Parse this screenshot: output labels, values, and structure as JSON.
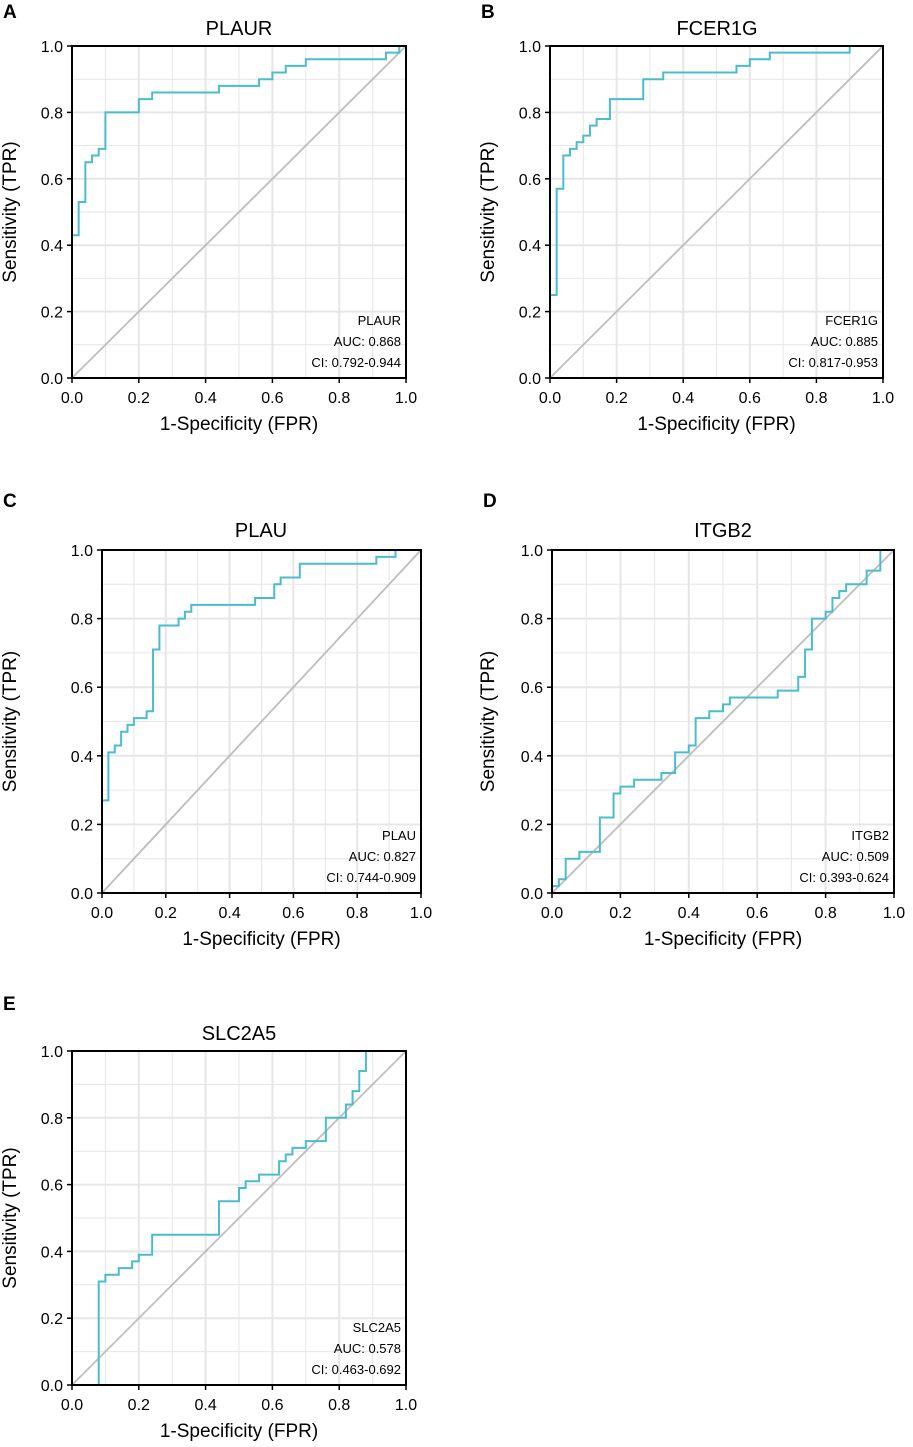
{
  "figure": {
    "panel_letters": [
      "A",
      "B",
      "C",
      "D",
      "E"
    ]
  },
  "colors": {
    "roc": "#4bbcce",
    "diagonal": "#bdbdbd",
    "grid": "#e6e6e6",
    "axis": "#000000"
  },
  "chart_data": [
    {
      "type": "line",
      "letter": "A",
      "title": "PLAUR",
      "xlabel": "1-Specificity (FPR)",
      "ylabel": "Sensitivity (TPR)",
      "xlim": [
        0,
        1
      ],
      "ylim": [
        0,
        1
      ],
      "xticks": [
        "0.0",
        "0.2",
        "0.4",
        "0.6",
        "0.8",
        "1.0"
      ],
      "yticks": [
        "0.0",
        "0.2",
        "0.4",
        "0.6",
        "0.8",
        "1.0"
      ],
      "grid": true,
      "annotation": {
        "name": "PLAUR",
        "auc": "AUC: 0.868",
        "ci": "CI: 0.792-0.944"
      },
      "series": [
        {
          "name": "ROC",
          "x": [
            0,
            0,
            0.02,
            0.02,
            0.04,
            0.04,
            0.06,
            0.06,
            0.08,
            0.08,
            0.1,
            0.1,
            0.2,
            0.2,
            0.24,
            0.24,
            0.44,
            0.44,
            0.56,
            0.56,
            0.6,
            0.6,
            0.64,
            0.64,
            0.7,
            0.7,
            0.94,
            0.94,
            0.98,
            0.98,
            1.0
          ],
          "y": [
            0,
            0.43,
            0.43,
            0.53,
            0.53,
            0.65,
            0.65,
            0.67,
            0.67,
            0.69,
            0.69,
            0.8,
            0.8,
            0.84,
            0.84,
            0.86,
            0.86,
            0.88,
            0.88,
            0.9,
            0.9,
            0.92,
            0.92,
            0.94,
            0.94,
            0.96,
            0.96,
            0.98,
            0.98,
            1.0,
            1.0
          ]
        },
        {
          "name": "Reference",
          "x": [
            0,
            1
          ],
          "y": [
            0,
            1
          ]
        }
      ]
    },
    {
      "type": "line",
      "letter": "B",
      "title": "FCER1G",
      "xlabel": "1-Specificity (FPR)",
      "ylabel": "Sensitivity (TPR)",
      "xlim": [
        0,
        1
      ],
      "ylim": [
        0,
        1
      ],
      "xticks": [
        "0.0",
        "0.2",
        "0.4",
        "0.6",
        "0.8",
        "1.0"
      ],
      "yticks": [
        "0.0",
        "0.2",
        "0.4",
        "0.6",
        "0.8",
        "1.0"
      ],
      "grid": true,
      "annotation": {
        "name": "FCER1G",
        "auc": "AUC: 0.885",
        "ci": "CI: 0.817-0.953"
      },
      "series": [
        {
          "name": "ROC",
          "x": [
            0,
            0,
            0.02,
            0.02,
            0.04,
            0.04,
            0.06,
            0.06,
            0.08,
            0.08,
            0.1,
            0.1,
            0.12,
            0.12,
            0.14,
            0.14,
            0.18,
            0.18,
            0.28,
            0.28,
            0.34,
            0.34,
            0.56,
            0.56,
            0.6,
            0.6,
            0.66,
            0.66,
            0.74,
            0.74,
            0.9,
            0.9,
            1.0
          ],
          "y": [
            0,
            0.25,
            0.25,
            0.57,
            0.57,
            0.67,
            0.67,
            0.69,
            0.69,
            0.71,
            0.71,
            0.73,
            0.73,
            0.76,
            0.76,
            0.78,
            0.78,
            0.84,
            0.84,
            0.9,
            0.9,
            0.92,
            0.92,
            0.94,
            0.94,
            0.96,
            0.96,
            0.98,
            0.98,
            0.98,
            0.98,
            1.0,
            1.0
          ]
        },
        {
          "name": "Reference",
          "x": [
            0,
            1
          ],
          "y": [
            0,
            1
          ]
        }
      ]
    },
    {
      "type": "line",
      "letter": "C",
      "title": "PLAU",
      "xlabel": "1-Specificity (FPR)",
      "ylabel": "Sensitivity (TPR)",
      "xlim": [
        0,
        1
      ],
      "ylim": [
        0,
        1
      ],
      "xticks": [
        "0.0",
        "0.2",
        "0.4",
        "0.6",
        "0.8",
        "1.0"
      ],
      "yticks": [
        "0.0",
        "0.2",
        "0.4",
        "0.6",
        "0.8",
        "1.0"
      ],
      "grid": true,
      "annotation": {
        "name": "PLAU",
        "auc": "AUC: 0.827",
        "ci": "CI: 0.744-0.909"
      },
      "series": [
        {
          "name": "ROC",
          "x": [
            0,
            0,
            0.02,
            0.02,
            0.04,
            0.04,
            0.06,
            0.06,
            0.08,
            0.08,
            0.1,
            0.1,
            0.12,
            0.12,
            0.14,
            0.14,
            0.16,
            0.16,
            0.18,
            0.18,
            0.24,
            0.24,
            0.26,
            0.26,
            0.28,
            0.28,
            0.48,
            0.48,
            0.54,
            0.54,
            0.56,
            0.56,
            0.62,
            0.62,
            0.86,
            0.86,
            0.92,
            0.92,
            1.0
          ],
          "y": [
            0,
            0.27,
            0.27,
            0.41,
            0.41,
            0.43,
            0.43,
            0.47,
            0.47,
            0.49,
            0.49,
            0.51,
            0.51,
            0.51,
            0.51,
            0.53,
            0.53,
            0.71,
            0.71,
            0.78,
            0.78,
            0.8,
            0.8,
            0.82,
            0.82,
            0.84,
            0.84,
            0.86,
            0.86,
            0.9,
            0.9,
            0.92,
            0.92,
            0.96,
            0.96,
            0.98,
            0.98,
            1.0,
            1.0
          ]
        },
        {
          "name": "Reference",
          "x": [
            0,
            1
          ],
          "y": [
            0,
            1
          ]
        }
      ]
    },
    {
      "type": "line",
      "letter": "D",
      "title": "ITGB2",
      "xlabel": "1-Specificity (FPR)",
      "ylabel": "Sensitivity (TPR)",
      "xlim": [
        0,
        1
      ],
      "ylim": [
        0,
        1
      ],
      "xticks": [
        "0.0",
        "0.2",
        "0.4",
        "0.6",
        "0.8",
        "1.0"
      ],
      "yticks": [
        "0.0",
        "0.2",
        "0.4",
        "0.6",
        "0.8",
        "1.0"
      ],
      "grid": true,
      "annotation": {
        "name": "ITGB2",
        "auc": "AUC: 0.509",
        "ci": "CI: 0.393-0.624"
      },
      "series": [
        {
          "name": "ROC",
          "x": [
            0,
            0,
            0.02,
            0.02,
            0.04,
            0.04,
            0.08,
            0.08,
            0.14,
            0.14,
            0.18,
            0.18,
            0.2,
            0.2,
            0.24,
            0.24,
            0.32,
            0.32,
            0.36,
            0.36,
            0.4,
            0.4,
            0.42,
            0.42,
            0.46,
            0.46,
            0.5,
            0.5,
            0.52,
            0.52,
            0.56,
            0.56,
            0.66,
            0.66,
            0.72,
            0.72,
            0.74,
            0.74,
            0.76,
            0.76,
            0.8,
            0.8,
            0.82,
            0.82,
            0.84,
            0.84,
            0.86,
            0.86,
            0.92,
            0.92,
            0.96,
            0.96,
            1.0
          ],
          "y": [
            0,
            0.02,
            0.02,
            0.04,
            0.04,
            0.1,
            0.1,
            0.12,
            0.12,
            0.22,
            0.22,
            0.29,
            0.29,
            0.31,
            0.31,
            0.33,
            0.33,
            0.35,
            0.35,
            0.41,
            0.41,
            0.43,
            0.43,
            0.51,
            0.51,
            0.53,
            0.53,
            0.55,
            0.55,
            0.57,
            0.57,
            0.57,
            0.57,
            0.59,
            0.59,
            0.63,
            0.63,
            0.71,
            0.71,
            0.8,
            0.8,
            0.82,
            0.82,
            0.86,
            0.86,
            0.88,
            0.88,
            0.9,
            0.9,
            0.94,
            0.94,
            1.0,
            1.0
          ]
        },
        {
          "name": "Reference",
          "x": [
            0,
            1
          ],
          "y": [
            0,
            1
          ]
        }
      ]
    },
    {
      "type": "line",
      "letter": "E",
      "title": "SLC2A5",
      "xlabel": "1-Specificity (FPR)",
      "ylabel": "Sensitivity (TPR)",
      "xlim": [
        0,
        1
      ],
      "ylim": [
        0,
        1
      ],
      "xticks": [
        "0.0",
        "0.2",
        "0.4",
        "0.6",
        "0.8",
        "1.0"
      ],
      "yticks": [
        "0.0",
        "0.2",
        "0.4",
        "0.6",
        "0.8",
        "1.0"
      ],
      "grid": true,
      "annotation": {
        "name": "SLC2A5",
        "auc": "AUC: 0.578",
        "ci": "CI: 0.463-0.692"
      },
      "series": [
        {
          "name": "ROC",
          "x": [
            0.08,
            0.08,
            0.1,
            0.1,
            0.14,
            0.14,
            0.18,
            0.18,
            0.2,
            0.2,
            0.24,
            0.24,
            0.44,
            0.44,
            0.5,
            0.5,
            0.52,
            0.52,
            0.56,
            0.56,
            0.62,
            0.62,
            0.64,
            0.64,
            0.66,
            0.66,
            0.7,
            0.7,
            0.76,
            0.76,
            0.82,
            0.82,
            0.84,
            0.84,
            0.86,
            0.86,
            0.88,
            0.88,
            1.0
          ],
          "y": [
            0,
            0.31,
            0.31,
            0.33,
            0.33,
            0.35,
            0.35,
            0.37,
            0.37,
            0.39,
            0.39,
            0.45,
            0.45,
            0.55,
            0.55,
            0.59,
            0.59,
            0.61,
            0.61,
            0.63,
            0.63,
            0.67,
            0.67,
            0.69,
            0.69,
            0.71,
            0.71,
            0.73,
            0.73,
            0.8,
            0.8,
            0.84,
            0.84,
            0.88,
            0.88,
            0.94,
            0.94,
            1.0,
            1.0
          ]
        },
        {
          "name": "Reference",
          "x": [
            0,
            1
          ],
          "y": [
            0,
            1
          ]
        }
      ]
    }
  ]
}
